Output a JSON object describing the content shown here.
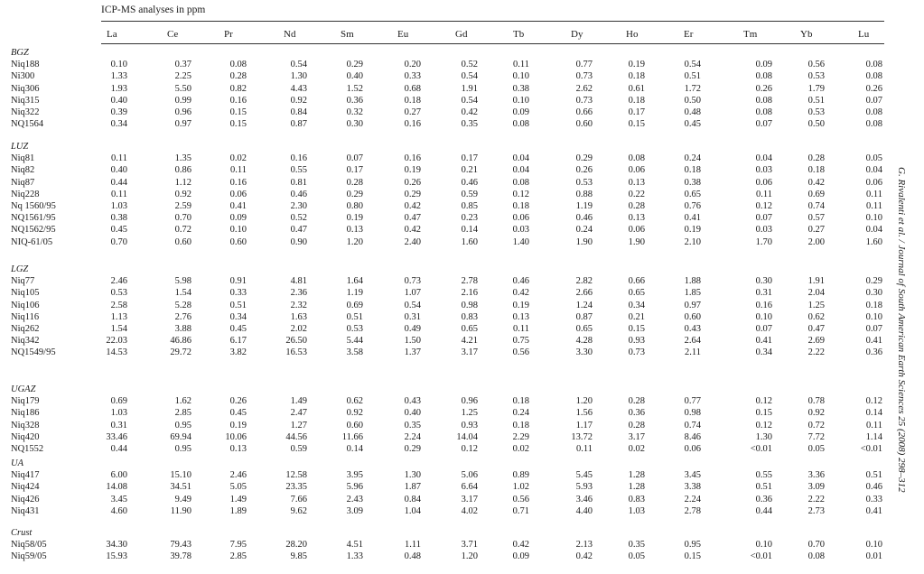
{
  "caption": "ICP-MS analyses in ppm",
  "columns": [
    "La",
    "Ce",
    "Pr",
    "Nd",
    "Sm",
    "Eu",
    "Gd",
    "Tb",
    "Dy",
    "Ho",
    "Er",
    "Tm",
    "Yb",
    "Lu"
  ],
  "journal_ref": "G. Rivalenti et al. / Journal of South American Earth Sciences 25 (2008) 298–312",
  "groups": [
    {
      "name": "BGZ",
      "rows": [
        {
          "sample": "Niq188",
          "values": [
            "0.10",
            "0.37",
            "0.08",
            "0.54",
            "0.29",
            "0.20",
            "0.52",
            "0.11",
            "0.77",
            "0.19",
            "0.54",
            "0.09",
            "0.56",
            "0.08"
          ]
        },
        {
          "sample": "Ni300",
          "values": [
            "1.33",
            "2.25",
            "0.28",
            "1.30",
            "0.40",
            "0.33",
            "0.54",
            "0.10",
            "0.73",
            "0.18",
            "0.51",
            "0.08",
            "0.53",
            "0.08"
          ]
        },
        {
          "sample": "Niq306",
          "values": [
            "1.93",
            "5.50",
            "0.82",
            "4.43",
            "1.52",
            "0.68",
            "1.91",
            "0.38",
            "2.62",
            "0.61",
            "1.72",
            "0.26",
            "1.79",
            "0.26"
          ]
        },
        {
          "sample": "Niq315",
          "values": [
            "0.40",
            "0.99",
            "0.16",
            "0.92",
            "0.36",
            "0.18",
            "0.54",
            "0.10",
            "0.73",
            "0.18",
            "0.50",
            "0.08",
            "0.51",
            "0.07"
          ]
        },
        {
          "sample": "Niq322",
          "values": [
            "0.39",
            "0.96",
            "0.15",
            "0.84",
            "0.32",
            "0.27",
            "0.42",
            "0.09",
            "0.66",
            "0.17",
            "0.48",
            "0.08",
            "0.53",
            "0.08"
          ]
        },
        {
          "sample": "NQ1564",
          "values": [
            "0.34",
            "0.97",
            "0.15",
            "0.87",
            "0.30",
            "0.16",
            "0.35",
            "0.08",
            "0.60",
            "0.15",
            "0.45",
            "0.07",
            "0.50",
            "0.08"
          ]
        }
      ]
    },
    {
      "name": "LUZ",
      "rows": [
        {
          "sample": "Niq81",
          "values": [
            "0.11",
            "1.35",
            "0.02",
            "0.16",
            "0.07",
            "0.16",
            "0.17",
            "0.04",
            "0.29",
            "0.08",
            "0.24",
            "0.04",
            "0.28",
            "0.05"
          ]
        },
        {
          "sample": "Niq82",
          "values": [
            "0.40",
            "0.86",
            "0.11",
            "0.55",
            "0.17",
            "0.19",
            "0.21",
            "0.04",
            "0.26",
            "0.06",
            "0.18",
            "0.03",
            "0.18",
            "0.04"
          ]
        },
        {
          "sample": "Niq87",
          "values": [
            "0.44",
            "1.12",
            "0.16",
            "0.81",
            "0.28",
            "0.26",
            "0.46",
            "0.08",
            "0.53",
            "0.13",
            "0.38",
            "0.06",
            "0.42",
            "0.06"
          ]
        },
        {
          "sample": "Niq228",
          "values": [
            "0.11",
            "0.92",
            "0.06",
            "0.46",
            "0.29",
            "0.29",
            "0.59",
            "0.12",
            "0.88",
            "0.22",
            "0.65",
            "0.11",
            "0.69",
            "0.11"
          ]
        },
        {
          "sample": "Nq 1560/95",
          "values": [
            "1.03",
            "2.59",
            "0.41",
            "2.30",
            "0.80",
            "0.42",
            "0.85",
            "0.18",
            "1.19",
            "0.28",
            "0.76",
            "0.12",
            "0.74",
            "0.11"
          ]
        },
        {
          "sample": "NQ1561/95",
          "values": [
            "0.38",
            "0.70",
            "0.09",
            "0.52",
            "0.19",
            "0.47",
            "0.23",
            "0.06",
            "0.46",
            "0.13",
            "0.41",
            "0.07",
            "0.57",
            "0.10"
          ]
        },
        {
          "sample": "NQ1562/95",
          "values": [
            "0.45",
            "0.72",
            "0.10",
            "0.47",
            "0.13",
            "0.42",
            "0.14",
            "0.03",
            "0.24",
            "0.06",
            "0.19",
            "0.03",
            "0.27",
            "0.04"
          ]
        },
        {
          "sample": "NIQ-61/05",
          "values": [
            "0.70",
            "0.60",
            "0.60",
            "0.90",
            "1.20",
            "2.40",
            "1.60",
            "1.40",
            "1.90",
            "1.90",
            "2.10",
            "1.70",
            "2.00",
            "1.60"
          ]
        }
      ]
    },
    {
      "name": "LGZ",
      "rows": [
        {
          "sample": "Niq77",
          "values": [
            "2.46",
            "5.98",
            "0.91",
            "4.81",
            "1.64",
            "0.73",
            "2.78",
            "0.46",
            "2.82",
            "0.66",
            "1.88",
            "0.30",
            "1.91",
            "0.29"
          ]
        },
        {
          "sample": "Niq105",
          "values": [
            "0.53",
            "1.54",
            "0.33",
            "2.36",
            "1.19",
            "1.07",
            "2.16",
            "0.42",
            "2.66",
            "0.65",
            "1.85",
            "0.31",
            "2.04",
            "0.30"
          ]
        },
        {
          "sample": "Niq106",
          "values": [
            "2.58",
            "5.28",
            "0.51",
            "2.32",
            "0.69",
            "0.54",
            "0.98",
            "0.19",
            "1.24",
            "0.34",
            "0.97",
            "0.16",
            "1.25",
            "0.18"
          ]
        },
        {
          "sample": "Niq116",
          "values": [
            "1.13",
            "2.76",
            "0.34",
            "1.63",
            "0.51",
            "0.31",
            "0.83",
            "0.13",
            "0.87",
            "0.21",
            "0.60",
            "0.10",
            "0.62",
            "0.10"
          ]
        },
        {
          "sample": "Niq262",
          "values": [
            "1.54",
            "3.88",
            "0.45",
            "2.02",
            "0.53",
            "0.49",
            "0.65",
            "0.11",
            "0.65",
            "0.15",
            "0.43",
            "0.07",
            "0.47",
            "0.07"
          ]
        },
        {
          "sample": "Niq342",
          "values": [
            "22.03",
            "46.86",
            "6.17",
            "26.50",
            "5.44",
            "1.50",
            "4.21",
            "0.75",
            "4.28",
            "0.93",
            "2.64",
            "0.41",
            "2.69",
            "0.41"
          ]
        },
        {
          "sample": "NQ1549/95",
          "values": [
            "14.53",
            "29.72",
            "3.82",
            "16.53",
            "3.58",
            "1.37",
            "3.17",
            "0.56",
            "3.30",
            "0.73",
            "2.11",
            "0.34",
            "2.22",
            "0.36"
          ]
        }
      ]
    },
    {
      "name": "UGAZ",
      "rows": [
        {
          "sample": "Niq179",
          "values": [
            "0.69",
            "1.62",
            "0.26",
            "1.49",
            "0.62",
            "0.43",
            "0.96",
            "0.18",
            "1.20",
            "0.28",
            "0.77",
            "0.12",
            "0.78",
            "0.12"
          ]
        },
        {
          "sample": "Niq186",
          "values": [
            "1.03",
            "2.85",
            "0.45",
            "2.47",
            "0.92",
            "0.40",
            "1.25",
            "0.24",
            "1.56",
            "0.36",
            "0.98",
            "0.15",
            "0.92",
            "0.14"
          ]
        },
        {
          "sample": "Niq328",
          "values": [
            "0.31",
            "0.95",
            "0.19",
            "1.27",
            "0.60",
            "0.35",
            "0.93",
            "0.18",
            "1.17",
            "0.28",
            "0.74",
            "0.12",
            "0.72",
            "0.11"
          ]
        },
        {
          "sample": "Niq420",
          "values": [
            "33.46",
            "69.94",
            "10.06",
            "44.56",
            "11.66",
            "2.24",
            "14.04",
            "2.29",
            "13.72",
            "3.17",
            "8.46",
            "1.30",
            "7.72",
            "1.14"
          ]
        },
        {
          "sample": "NQ1552",
          "values": [
            "0.44",
            "0.95",
            "0.13",
            "0.59",
            "0.14",
            "0.29",
            "0.12",
            "0.02",
            "0.11",
            "0.02",
            "0.06",
            "<0.01",
            "0.05",
            "<0.01"
          ]
        }
      ]
    },
    {
      "name": "UA",
      "rows": [
        {
          "sample": "Niq417",
          "values": [
            "6.00",
            "15.10",
            "2.46",
            "12.58",
            "3.95",
            "1.30",
            "5.06",
            "0.89",
            "5.45",
            "1.28",
            "3.45",
            "0.55",
            "3.36",
            "0.51"
          ]
        },
        {
          "sample": "Niq424",
          "values": [
            "14.08",
            "34.51",
            "5.05",
            "23.35",
            "5.96",
            "1.87",
            "6.64",
            "1.02",
            "5.93",
            "1.28",
            "3.38",
            "0.51",
            "3.09",
            "0.46"
          ]
        },
        {
          "sample": "Niq426",
          "values": [
            "3.45",
            "9.49",
            "1.49",
            "7.66",
            "2.43",
            "0.84",
            "3.17",
            "0.56",
            "3.46",
            "0.83",
            "2.24",
            "0.36",
            "2.22",
            "0.33"
          ]
        },
        {
          "sample": "Niq431",
          "values": [
            "4.60",
            "11.90",
            "1.89",
            "9.62",
            "3.09",
            "1.04",
            "4.02",
            "0.71",
            "4.40",
            "1.03",
            "2.78",
            "0.44",
            "2.73",
            "0.41"
          ]
        }
      ]
    },
    {
      "name": "Crust",
      "rows": [
        {
          "sample": "Niq58/05",
          "values": [
            "34.30",
            "79.43",
            "7.95",
            "28.20",
            "4.51",
            "1.11",
            "3.71",
            "0.42",
            "2.13",
            "0.35",
            "0.95",
            "0.10",
            "0.70",
            "0.10"
          ]
        },
        {
          "sample": "Niq59/05",
          "values": [
            "15.93",
            "39.78",
            "2.85",
            "9.85",
            "1.33",
            "0.48",
            "1.20",
            "0.09",
            "0.42",
            "0.05",
            "0.15",
            "<0.01",
            "0.08",
            "0.01"
          ]
        }
      ]
    }
  ]
}
